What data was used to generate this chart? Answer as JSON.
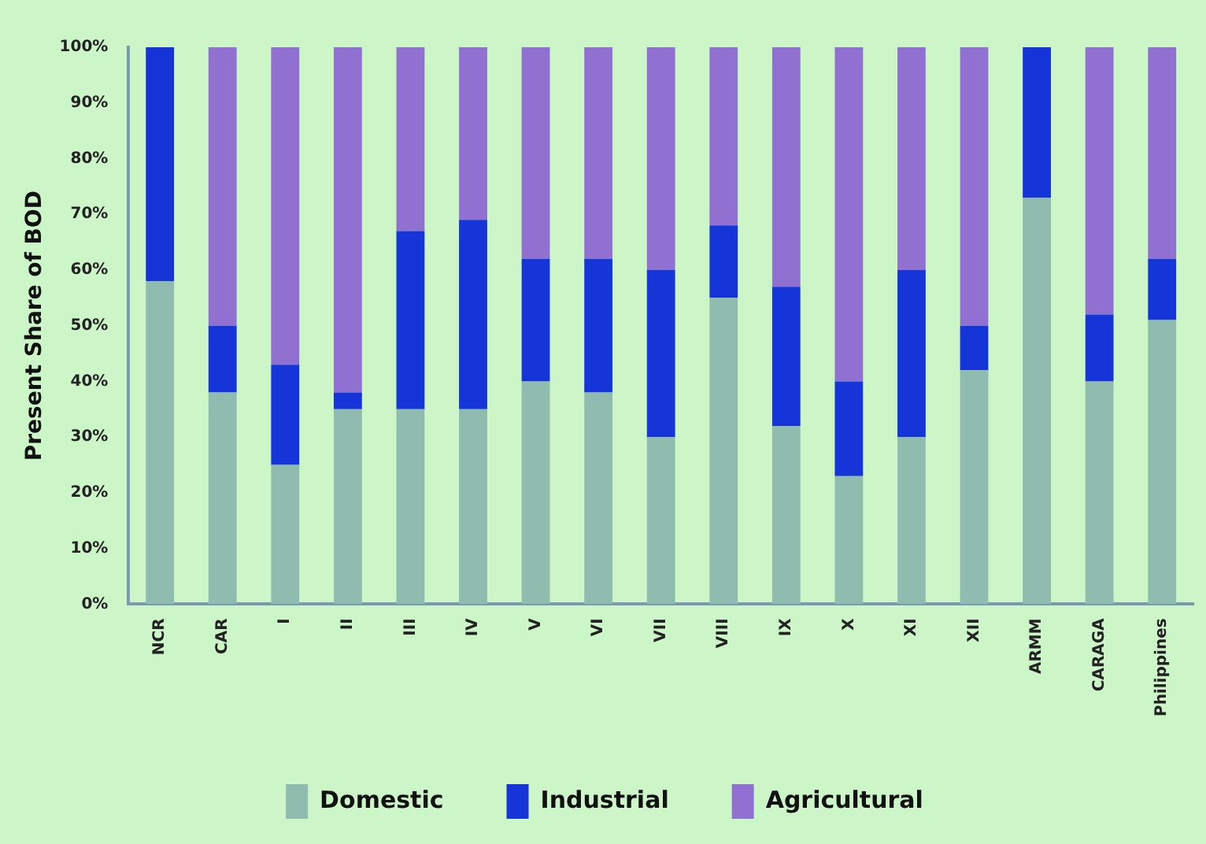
{
  "chart_data": {
    "type": "bar",
    "stacked": true,
    "ylabel": "Present Share of BOD",
    "categories": [
      "NCR",
      "CAR",
      "I",
      "II",
      "III",
      "IV",
      "V",
      "VI",
      "VII",
      "VIII",
      "IX",
      "X",
      "XI",
      "XII",
      "ARMM",
      "CARAGA",
      "Philippines"
    ],
    "series": [
      {
        "name": "Domestic",
        "color": "#8fbcae",
        "values": [
          58,
          38,
          25,
          35,
          35,
          35,
          40,
          38,
          30,
          55,
          32,
          23,
          30,
          42,
          73,
          40,
          51
        ]
      },
      {
        "name": "Industrial",
        "color": "#1535d8",
        "values": [
          42,
          12,
          18,
          3,
          32,
          34,
          22,
          24,
          30,
          13,
          25,
          17,
          30,
          8,
          27,
          12,
          11
        ]
      },
      {
        "name": "Agricultural",
        "color": "#9070d0",
        "values": [
          0,
          50,
          57,
          62,
          33,
          31,
          38,
          38,
          40,
          32,
          43,
          60,
          40,
          50,
          0,
          48,
          38
        ]
      }
    ],
    "ylim": [
      0,
      100
    ],
    "yticks": [
      {
        "value": 0,
        "label": "0%"
      },
      {
        "value": 10,
        "label": "10%"
      },
      {
        "value": 20,
        "label": "20%"
      },
      {
        "value": 30,
        "label": "30%"
      },
      {
        "value": 40,
        "label": "40%"
      },
      {
        "value": 50,
        "label": "50%"
      },
      {
        "value": 60,
        "label": "60%"
      },
      {
        "value": 70,
        "label": "70%"
      },
      {
        "value": 80,
        "label": "80%"
      },
      {
        "value": 90,
        "label": "90%"
      },
      {
        "value": 100,
        "label": "100%"
      }
    ],
    "grid": false,
    "legend": "bottom"
  }
}
